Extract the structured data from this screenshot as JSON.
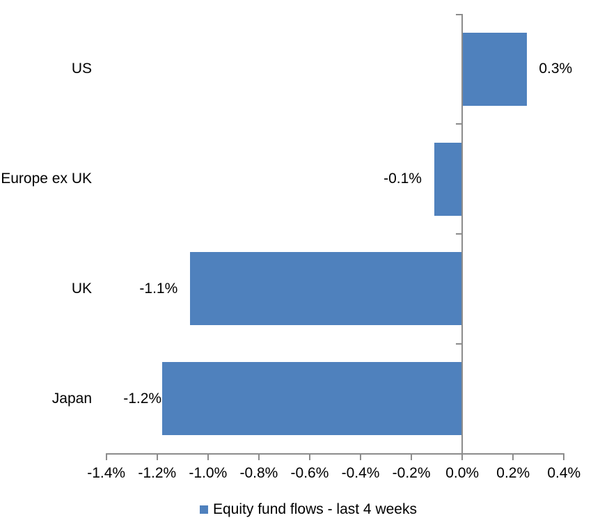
{
  "chart_data": {
    "type": "bar",
    "orientation": "horizontal",
    "title": "",
    "xlabel": "",
    "ylabel": "",
    "categories": [
      "US",
      "Europe ex UK",
      "UK",
      "Japan"
    ],
    "series": [
      {
        "name": "Equity fund flows - last 4 weeks",
        "values": [
          0.3,
          -0.1,
          -1.1,
          -1.2
        ],
        "bar_values_precise": [
          0.255,
          -0.11,
          -1.07,
          -1.18
        ],
        "data_labels": [
          "0.3%",
          "-0.1%",
          "-1.1%",
          "-1.2%"
        ]
      }
    ],
    "xlim": [
      -1.4,
      0.4
    ],
    "x_ticks": [
      -1.4,
      -1.2,
      -1.0,
      -0.8,
      -0.6,
      -0.4,
      -0.2,
      0.0,
      0.2,
      0.4
    ],
    "x_tick_labels": [
      "-1.4%",
      "-1.2%",
      "-1.0%",
      "-0.8%",
      "-0.6%",
      "-0.4%",
      "-0.2%",
      "0.0%",
      "0.2%",
      "0.4%"
    ],
    "grid": false,
    "legend_position": "bottom",
    "colors": {
      "bar": "#4F81BD",
      "axis": "#8C8C8C",
      "text": "#000000",
      "background": "#FFFFFF"
    }
  },
  "legend": {
    "label": "Equity fund flows - last 4 weeks"
  }
}
